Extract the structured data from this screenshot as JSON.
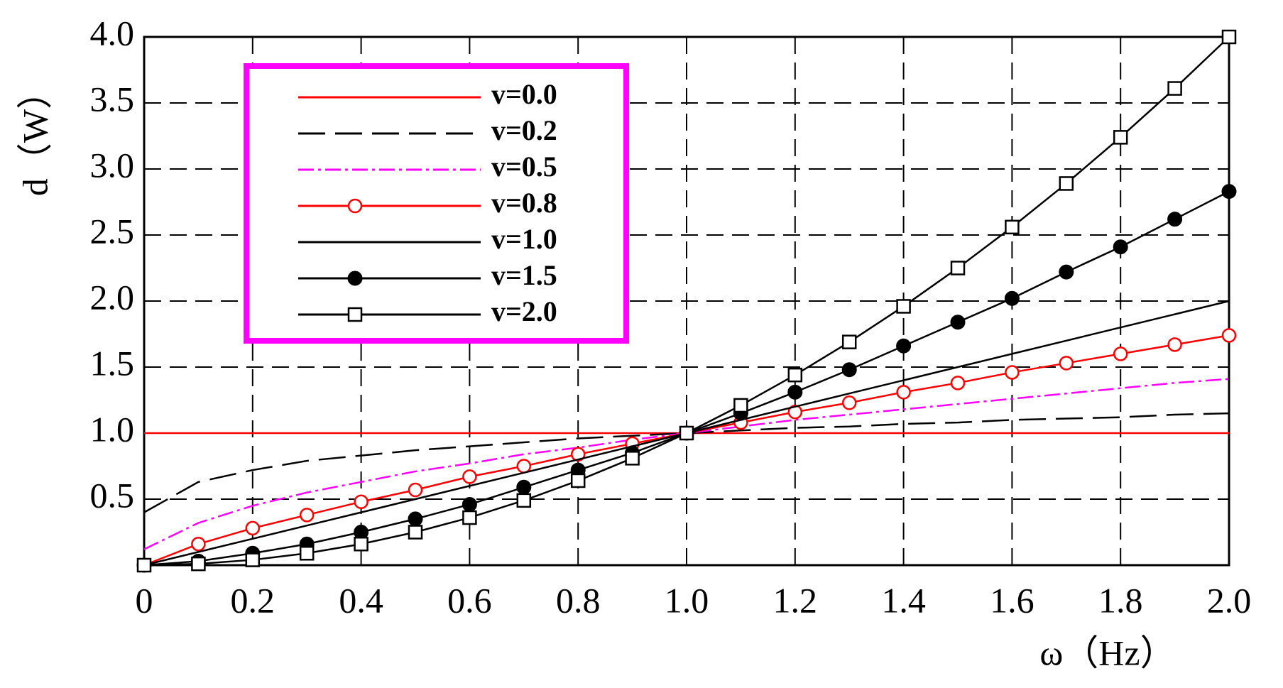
{
  "chart_data": {
    "type": "line",
    "y_label": "d（W）",
    "x_label": "ω（Hz）",
    "x": [
      0,
      0.1,
      0.2,
      0.3,
      0.4,
      0.5,
      0.6,
      0.7,
      0.8,
      0.9,
      1,
      1.1,
      1.2,
      1.3,
      1.4,
      1.5,
      1.6,
      1.7,
      1.8,
      1.9,
      2
    ],
    "series": [
      {
        "name": "v=0.0",
        "color": "#ff0000",
        "dash": "solid",
        "marker": "none",
        "values": [
          1,
          1,
          1,
          1,
          1,
          1,
          1,
          1,
          1,
          1,
          1,
          1,
          1,
          1,
          1,
          1,
          1,
          1,
          1,
          1,
          1
        ]
      },
      {
        "name": "v=0.2",
        "color": "#000000",
        "dash": "long",
        "marker": "none",
        "values": [
          0.4,
          0.63,
          0.72,
          0.79,
          0.83,
          0.87,
          0.9,
          0.93,
          0.96,
          0.98,
          1,
          1.02,
          1.04,
          1.05,
          1.07,
          1.08,
          1.1,
          1.11,
          1.12,
          1.14,
          1.15
        ]
      },
      {
        "name": "v=0.5",
        "color": "#ff00ff",
        "dash": "dashdot",
        "marker": "none",
        "values": [
          0.12,
          0.32,
          0.45,
          0.55,
          0.63,
          0.71,
          0.77,
          0.84,
          0.89,
          0.95,
          1,
          1.05,
          1.1,
          1.14,
          1.18,
          1.22,
          1.26,
          1.3,
          1.34,
          1.38,
          1.41
        ]
      },
      {
        "name": "v=0.8",
        "color": "#ff0000",
        "dash": "solid",
        "marker": "circle-open",
        "values": [
          0,
          0.16,
          0.28,
          0.38,
          0.48,
          0.57,
          0.67,
          0.75,
          0.84,
          0.92,
          1,
          1.08,
          1.16,
          1.23,
          1.31,
          1.38,
          1.46,
          1.53,
          1.6,
          1.67,
          1.74
        ]
      },
      {
        "name": "v=1.0",
        "color": "#000000",
        "dash": "solid",
        "marker": "none",
        "values": [
          0,
          0.1,
          0.2,
          0.3,
          0.4,
          0.5,
          0.6,
          0.7,
          0.8,
          0.9,
          1,
          1.1,
          1.2,
          1.3,
          1.4,
          1.5,
          1.6,
          1.7,
          1.8,
          1.9,
          2
        ]
      },
      {
        "name": "v=1.5",
        "color": "#000000",
        "dash": "solid",
        "marker": "circle-filled",
        "values": [
          0,
          0.03,
          0.09,
          0.16,
          0.25,
          0.35,
          0.46,
          0.59,
          0.72,
          0.85,
          1,
          1.15,
          1.31,
          1.48,
          1.66,
          1.84,
          2.02,
          2.22,
          2.41,
          2.62,
          2.83
        ]
      },
      {
        "name": "v=2.0",
        "color": "#000000",
        "dash": "solid",
        "marker": "square",
        "values": [
          0,
          0.01,
          0.04,
          0.09,
          0.16,
          0.25,
          0.36,
          0.49,
          0.64,
          0.81,
          1,
          1.21,
          1.44,
          1.69,
          1.96,
          2.25,
          2.56,
          2.89,
          3.24,
          3.61,
          4
        ]
      }
    ],
    "xlim": [
      0,
      2
    ],
    "ylim": [
      0,
      4
    ],
    "xticks": [
      0,
      0.2,
      0.4,
      0.6,
      0.8,
      {
        "value": 1,
        "label": "1.0"
      },
      1.2,
      1.4,
      1.6,
      1.8,
      {
        "value": 2,
        "label": "2.0"
      }
    ],
    "yticks": [
      0.5,
      {
        "value": 1,
        "label": "1.0"
      },
      1.5,
      {
        "value": 2,
        "label": "2.0"
      },
      2.5,
      {
        "value": 3,
        "label": "3.0"
      },
      3.5,
      {
        "value": 4,
        "label": "4.0"
      }
    ],
    "grid": true,
    "legend": "upper-left",
    "legend_border_color": "#ff00ff"
  }
}
